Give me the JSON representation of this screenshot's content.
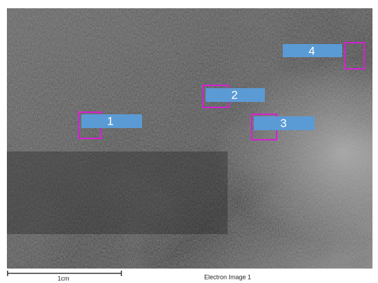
{
  "image": {
    "caption": "Electron Image 1",
    "scale_bar": "1cm"
  },
  "markers": [
    {
      "label": "1"
    },
    {
      "label": "2"
    },
    {
      "label": "3"
    },
    {
      "label": "4"
    }
  ]
}
